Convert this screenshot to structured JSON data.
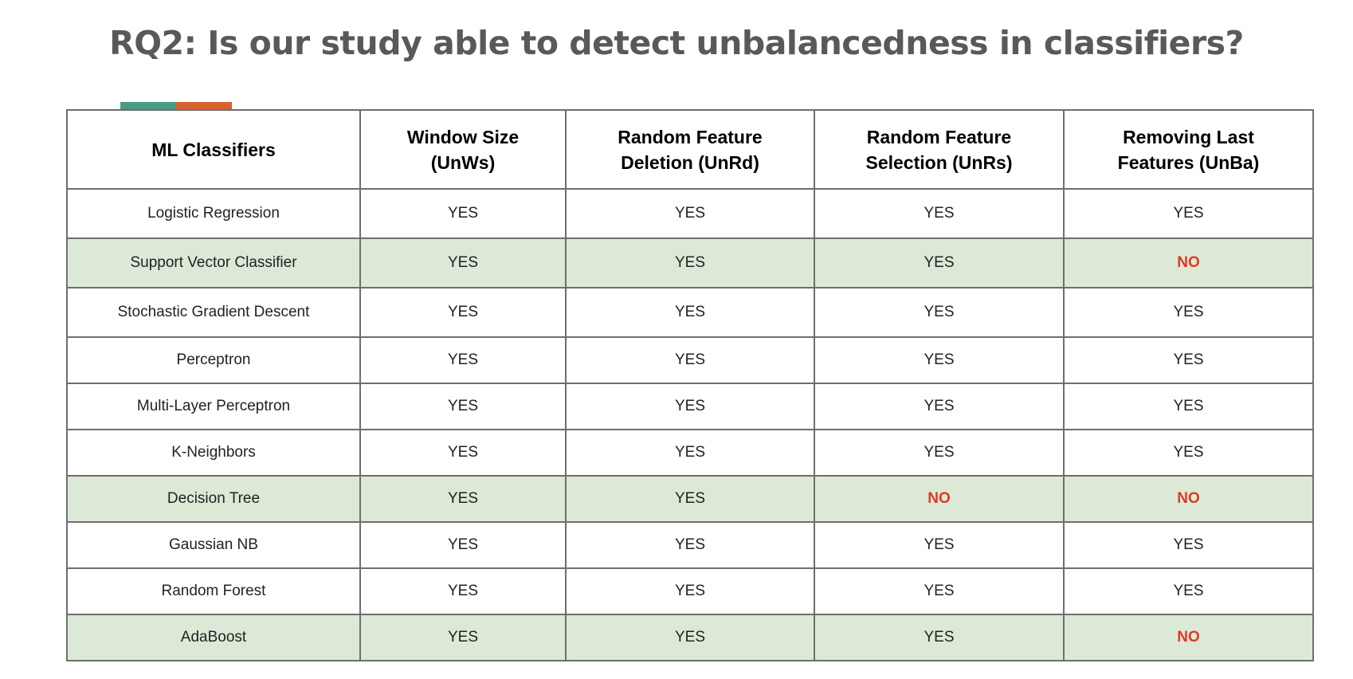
{
  "title": "RQ2: Is our study able to detect unbalancedness in classifiers?",
  "colors": {
    "accent_teal": "#4a9a86",
    "accent_orange": "#d8622f",
    "highlight_row": "#dde9d7",
    "no_text": "#e03a24",
    "title_text": "#595959"
  },
  "table": {
    "headers": [
      "ML Classifiers",
      "Window Size (UnWs)",
      "Random Feature Deletion (UnRd)",
      "Random Feature Selection (UnRs)",
      "Removing Last Features (UnBa)"
    ],
    "rows": [
      {
        "classifier": "Logistic Regression",
        "values": [
          "YES",
          "YES",
          "YES",
          "YES"
        ]
      },
      {
        "classifier": "Support Vector Classifier",
        "values": [
          "YES",
          "YES",
          "YES",
          "NO"
        ]
      },
      {
        "classifier": "Stochastic Gradient Descent",
        "values": [
          "YES",
          "YES",
          "YES",
          "YES"
        ]
      },
      {
        "classifier": "Perceptron",
        "values": [
          "YES",
          "YES",
          "YES",
          "YES"
        ]
      },
      {
        "classifier": "Multi-Layer Perceptron",
        "values": [
          "YES",
          "YES",
          "YES",
          "YES"
        ]
      },
      {
        "classifier": "K-Neighbors",
        "values": [
          "YES",
          "YES",
          "YES",
          "YES"
        ]
      },
      {
        "classifier": "Decision Tree",
        "values": [
          "YES",
          "YES",
          "NO",
          "NO"
        ]
      },
      {
        "classifier": "Gaussian NB",
        "values": [
          "YES",
          "YES",
          "YES",
          "YES"
        ]
      },
      {
        "classifier": "Random Forest",
        "values": [
          "YES",
          "YES",
          "YES",
          "YES"
        ]
      },
      {
        "classifier": "AdaBoost",
        "values": [
          "YES",
          "YES",
          "YES",
          "NO"
        ]
      }
    ],
    "highlighted_rows": [
      1,
      6,
      9
    ]
  }
}
